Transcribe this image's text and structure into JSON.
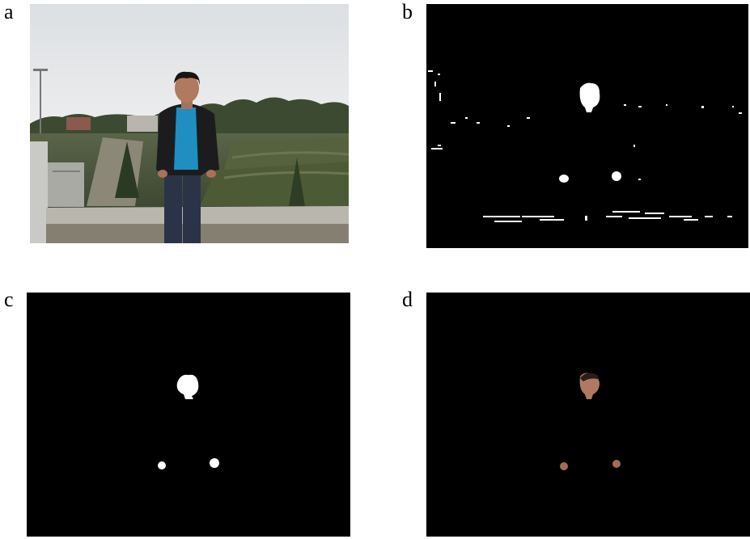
{
  "panels": [
    {
      "label": "a",
      "content": "original-photo"
    },
    {
      "label": "b",
      "content": "skin-detection-raw"
    },
    {
      "label": "c",
      "content": "skin-mask-filtered"
    },
    {
      "label": "d",
      "content": "skin-regions-extracted"
    }
  ],
  "colors": {
    "mask_background": "#000000",
    "mask_foreground": "#ffffff",
    "skin_tone": "#a8725a",
    "sky": "#e7e8ea",
    "jacket": "#1c1c1e",
    "shirt": "#1e8fc0",
    "jeans": "#2a3347",
    "foliage": "#3a4a2c"
  }
}
